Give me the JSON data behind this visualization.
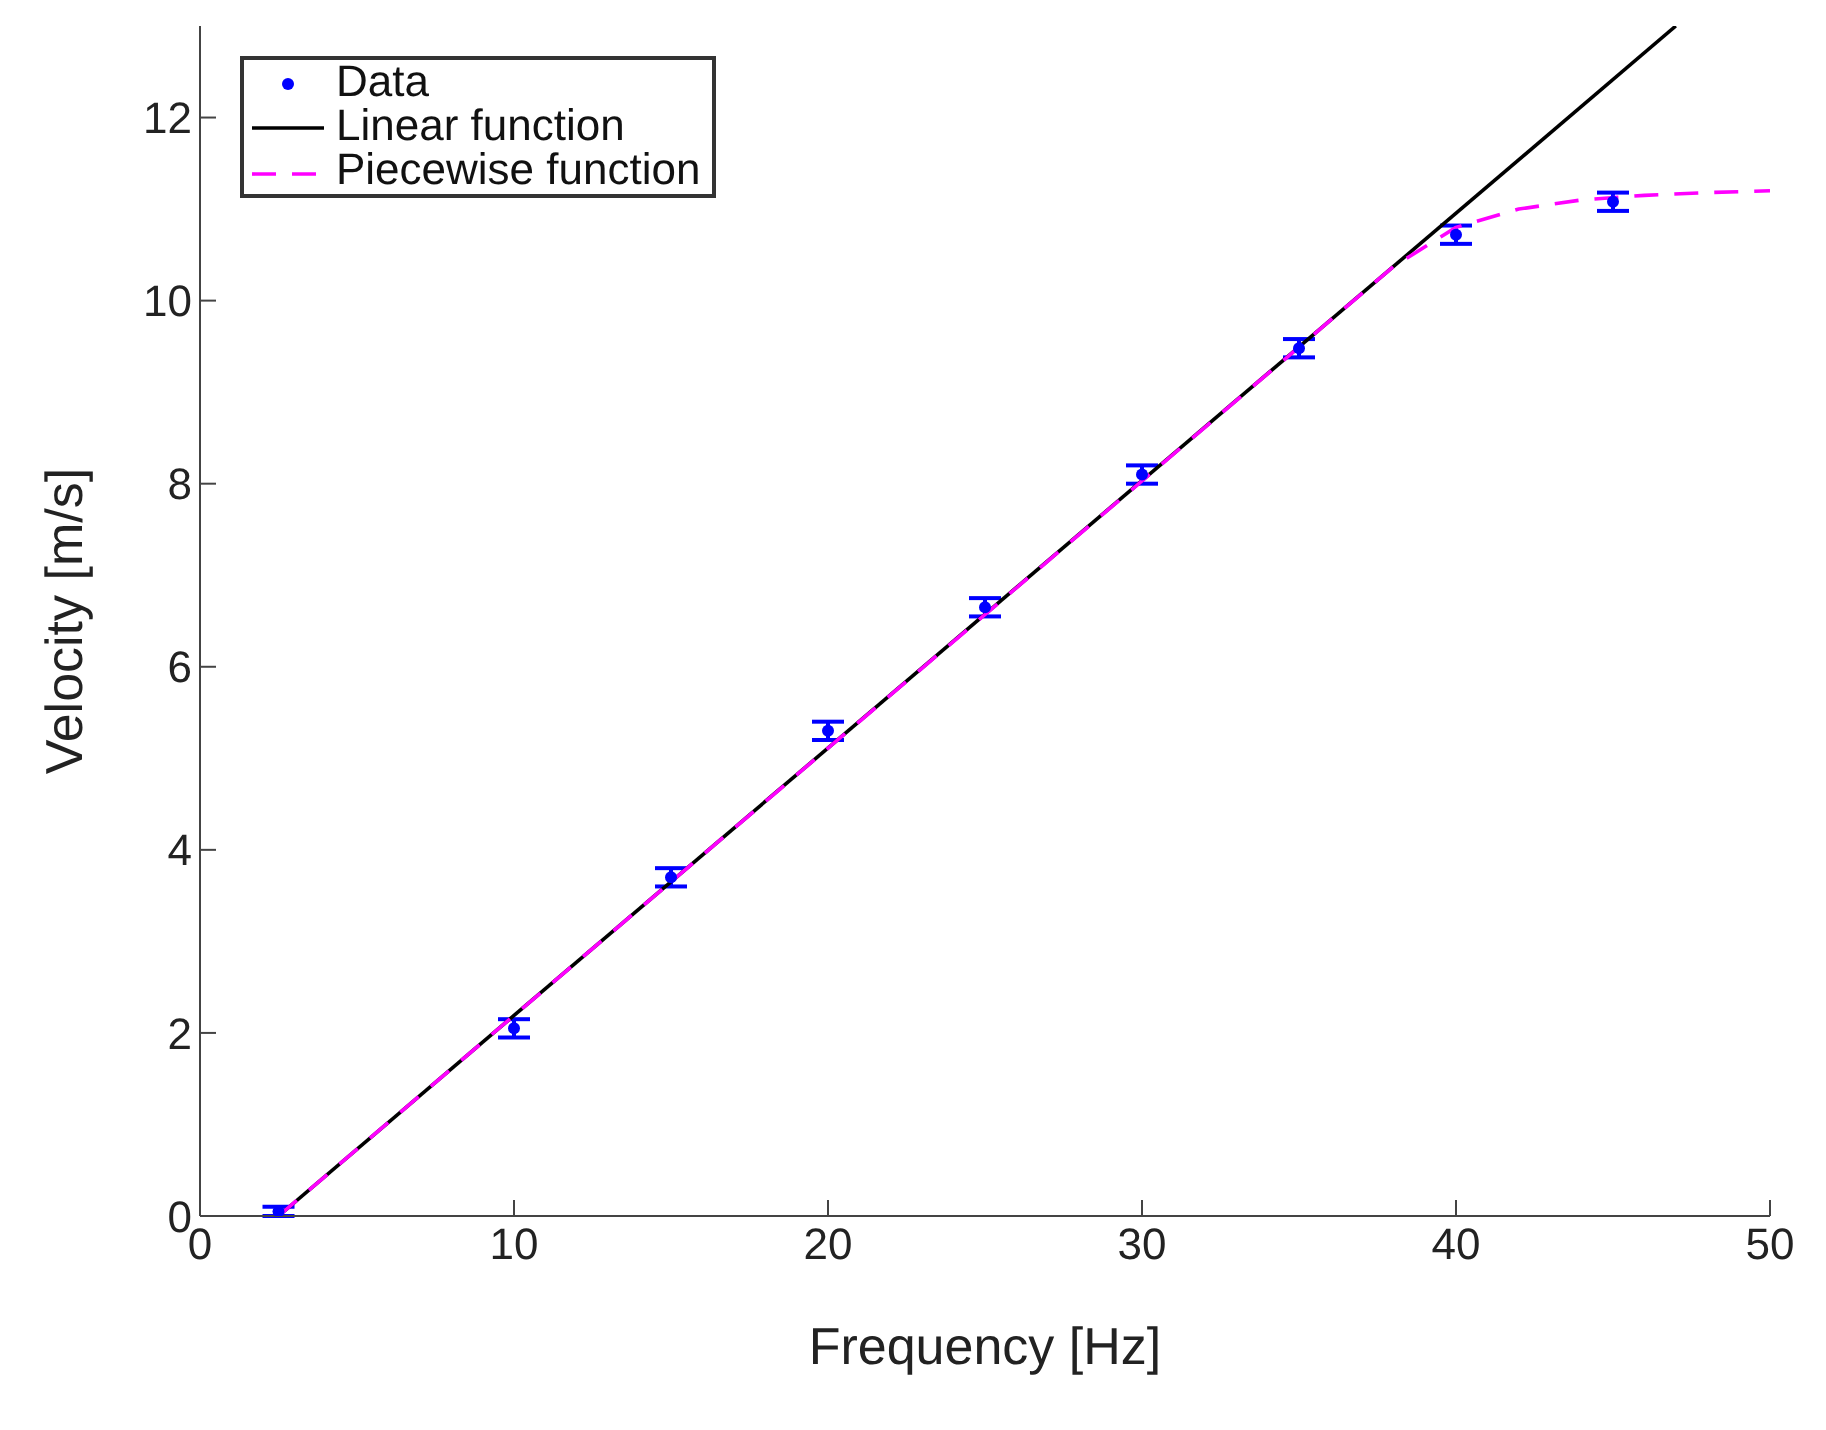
{
  "chart_data": {
    "type": "scatter",
    "xlabel": "Frequency [Hz]",
    "ylabel": "Velocity [m/s]",
    "xlim": [
      0,
      50
    ],
    "xticks": [
      0,
      10,
      20,
      30,
      40,
      50
    ],
    "ylim": [
      0,
      13
    ],
    "yticks": [
      0,
      2,
      4,
      6,
      8,
      10,
      12
    ],
    "legend": "top left",
    "series": [
      {
        "name": "Data",
        "color": "#0000ff",
        "marker": "circle",
        "x": [
          2.5,
          10,
          15,
          20,
          25,
          30,
          35,
          40,
          45
        ],
        "values": [
          0.05,
          2.05,
          3.7,
          5.3,
          6.65,
          8.1,
          9.48,
          10.72,
          11.08
        ],
        "errors": [
          0.05,
          0.1,
          0.1,
          0.1,
          0.1,
          0.1,
          0.1,
          0.1,
          0.1
        ]
      },
      {
        "name": "Linear function",
        "type": "line",
        "color": "#000000",
        "line_style": "solid",
        "marker": "none",
        "x": [
          2.5,
          47
        ],
        "values": [
          0,
          13
        ]
      },
      {
        "name": "Piecewise function",
        "type": "line",
        "color": "#ff00ff",
        "line_style": "dashed",
        "marker": "none",
        "x": [
          2.5,
          10,
          20,
          30,
          38,
          40,
          42,
          44,
          46,
          48,
          50
        ],
        "values": [
          0,
          2.19,
          5.11,
          8.03,
          10.37,
          10.8,
          11.0,
          11.1,
          11.15,
          11.18,
          11.2
        ]
      }
    ]
  }
}
